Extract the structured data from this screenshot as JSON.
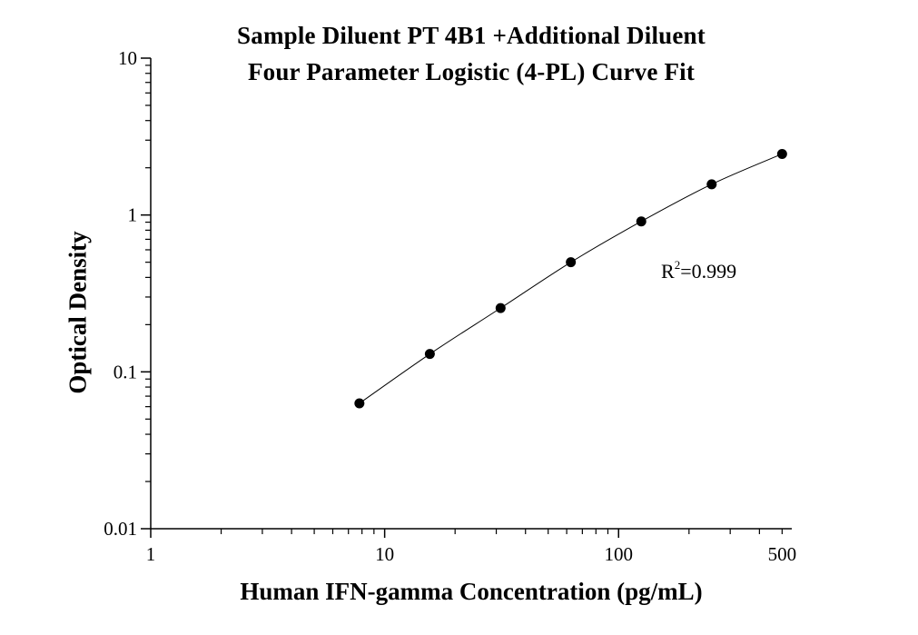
{
  "chart_data": {
    "type": "scatter",
    "title": "Sample Diluent PT 4B1 +Additional Diluent",
    "subtitle": "Four Parameter Logistic (4-PL) Curve Fit",
    "xlabel": "Human IFN-gamma Concentration (pg/mL)",
    "ylabel": "Optical Density",
    "x_scale": "log",
    "y_scale": "log",
    "xlim": [
      1,
      550
    ],
    "ylim": [
      0.01,
      10
    ],
    "x_ticks": [
      {
        "value": 1,
        "label": "1"
      },
      {
        "value": 10,
        "label": "10"
      },
      {
        "value": 100,
        "label": "100"
      },
      {
        "value": 500,
        "label": "500"
      }
    ],
    "y_ticks": [
      {
        "value": 0.01,
        "label": "0.01"
      },
      {
        "value": 0.1,
        "label": "0.1"
      },
      {
        "value": 1,
        "label": "1"
      },
      {
        "value": 10,
        "label": "10"
      }
    ],
    "grid": false,
    "series": [
      {
        "points": [
          {
            "x": 7.8,
            "y": 0.063
          },
          {
            "x": 15.6,
            "y": 0.13
          },
          {
            "x": 31.3,
            "y": 0.255
          },
          {
            "x": 62.5,
            "y": 0.5
          },
          {
            "x": 125,
            "y": 0.91
          },
          {
            "x": 250,
            "y": 1.57
          },
          {
            "x": 500,
            "y": 2.45
          }
        ],
        "fit": "4-PL"
      }
    ],
    "annotations": [
      {
        "text": "R",
        "sup": "2",
        "value": "=0.999"
      }
    ]
  }
}
